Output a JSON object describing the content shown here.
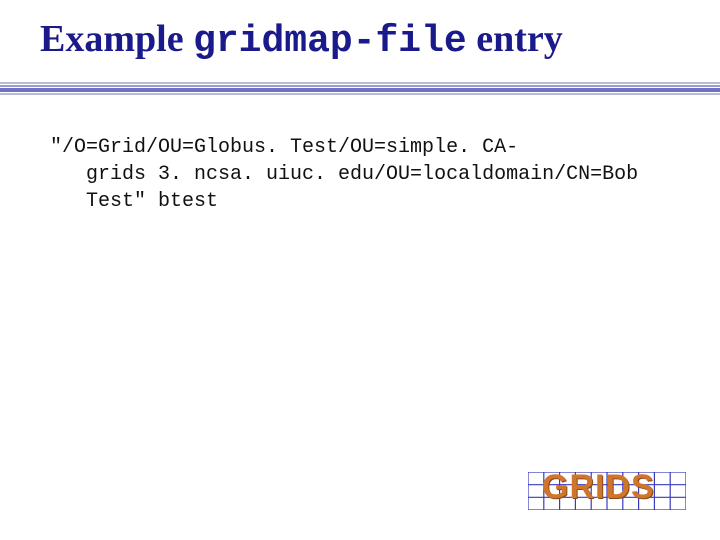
{
  "colors": {
    "title": "#1a1a8a",
    "body_text": "#111111",
    "background": "#ffffff",
    "divider_light": "#b9b9d9",
    "divider_mid": "#9a9acf",
    "divider_dark": "#6f6fc4",
    "logo_grid": "#3a3ac0",
    "logo_text": "#d0752a"
  },
  "typography": {
    "title_fontsize_pt": 29,
    "title_weight": "bold",
    "body_fontsize_pt": 15,
    "body_family": "Courier New"
  },
  "title": {
    "part1": "Example ",
    "mono": "gridmap-file",
    "part2": " entry"
  },
  "entry": {
    "line1": "\"/O=Grid/OU=Globus. Test/OU=simple. CA-",
    "line2": "   grids 3. ncsa. uiuc. edu/OU=localdomain/CN=Bob",
    "line3": "   Test\" btest"
  },
  "logo": {
    "text": "GRIDS",
    "grid": {
      "cols": 10,
      "rows": 3,
      "width": 158,
      "height": 38
    }
  }
}
